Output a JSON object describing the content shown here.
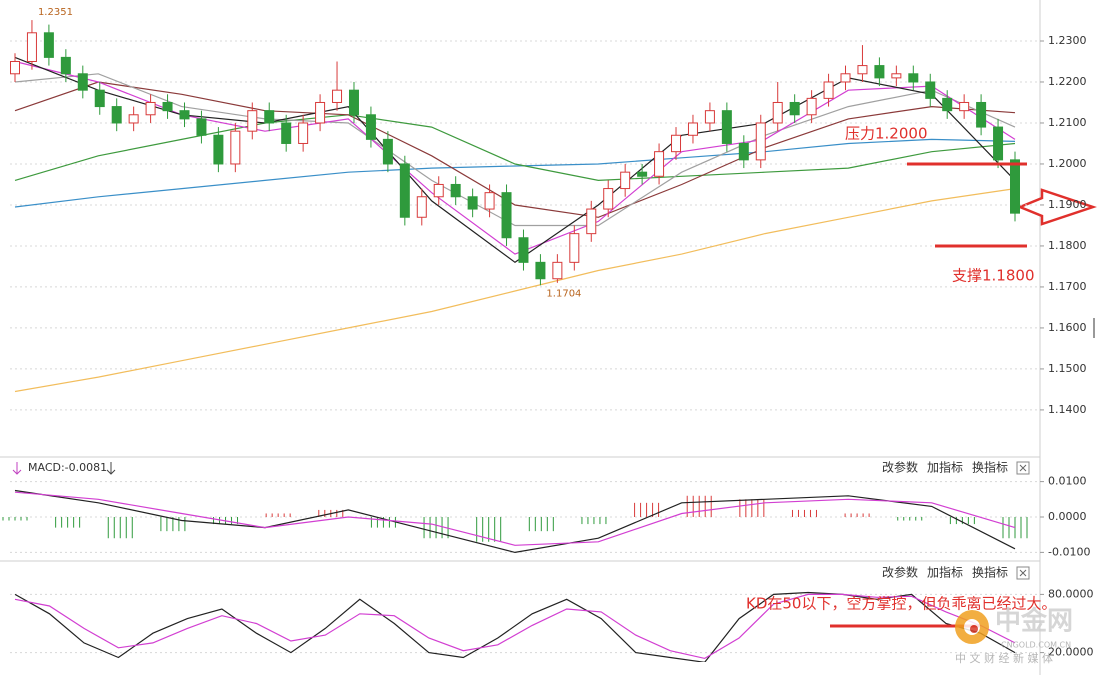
{
  "chart_data": [
    {
      "type": "candlestick",
      "open": [
        1.222,
        1.225,
        1.232,
        1.226,
        1.222,
        1.218,
        1.214,
        1.21,
        1.212,
        1.215,
        1.213,
        1.211,
        1.207,
        1.2,
        1.208,
        1.213,
        1.21,
        1.205,
        1.21,
        1.215,
        1.218,
        1.212,
        1.206,
        1.2,
        1.187,
        1.192,
        1.195,
        1.192,
        1.189,
        1.193,
        1.182,
        1.176,
        1.172,
        1.176,
        1.183,
        1.189,
        1.194,
        1.198,
        1.197,
        1.203,
        1.207,
        1.21,
        1.213,
        1.205,
        1.201,
        1.21,
        1.215,
        1.212,
        1.216,
        1.22,
        1.222,
        1.224,
        1.221,
        1.222,
        1.22,
        1.216,
        1.213,
        1.215,
        1.209,
        1.201
      ],
      "high": [
        1.227,
        1.2351,
        1.234,
        1.228,
        1.224,
        1.22,
        1.216,
        1.214,
        1.217,
        1.217,
        1.215,
        1.213,
        1.209,
        1.21,
        1.215,
        1.215,
        1.212,
        1.212,
        1.217,
        1.225,
        1.22,
        1.214,
        1.208,
        1.202,
        1.194,
        1.197,
        1.197,
        1.194,
        1.195,
        1.195,
        1.184,
        1.178,
        1.178,
        1.185,
        1.191,
        1.196,
        1.2,
        1.2,
        1.205,
        1.209,
        1.212,
        1.215,
        1.215,
        1.207,
        1.212,
        1.22,
        1.217,
        1.218,
        1.222,
        1.224,
        1.229,
        1.226,
        1.224,
        1.224,
        1.222,
        1.218,
        1.217,
        1.217,
        1.211,
        1.203
      ],
      "low": [
        1.22,
        1.223,
        1.224,
        1.22,
        1.216,
        1.212,
        1.208,
        1.208,
        1.21,
        1.211,
        1.209,
        1.205,
        1.198,
        1.198,
        1.206,
        1.208,
        1.203,
        1.203,
        1.208,
        1.213,
        1.21,
        1.204,
        1.198,
        1.185,
        1.185,
        1.19,
        1.19,
        1.187,
        1.187,
        1.18,
        1.174,
        1.1704,
        1.171,
        1.174,
        1.181,
        1.187,
        1.192,
        1.195,
        1.195,
        1.201,
        1.205,
        1.208,
        1.203,
        1.199,
        1.199,
        1.208,
        1.21,
        1.21,
        1.214,
        1.218,
        1.22,
        1.219,
        1.219,
        1.218,
        1.214,
        1.211,
        1.211,
        1.207,
        1.199,
        1.186
      ],
      "close": [
        1.225,
        1.232,
        1.226,
        1.222,
        1.218,
        1.214,
        1.21,
        1.212,
        1.215,
        1.213,
        1.211,
        1.207,
        1.2,
        1.208,
        1.213,
        1.21,
        1.205,
        1.21,
        1.215,
        1.218,
        1.212,
        1.206,
        1.2,
        1.187,
        1.192,
        1.195,
        1.192,
        1.189,
        1.193,
        1.182,
        1.176,
        1.172,
        1.176,
        1.183,
        1.189,
        1.194,
        1.198,
        1.197,
        1.203,
        1.207,
        1.21,
        1.213,
        1.205,
        1.201,
        1.21,
        1.215,
        1.212,
        1.216,
        1.22,
        1.222,
        1.224,
        1.221,
        1.222,
        1.22,
        1.216,
        1.213,
        1.215,
        1.209,
        1.201,
        1.188
      ],
      "up_color": "#d83a3a",
      "down_color": "#2f9a3c",
      "series": [
        {
          "color": "#f2bd5c",
          "values": [
            1.1445,
            1.148,
            1.152,
            1.156,
            1.16,
            1.164,
            1.169,
            1.174,
            1.178,
            1.183,
            1.187,
            1.191,
            1.194
          ]
        },
        {
          "color": "#3a8fc8",
          "values": [
            1.1895,
            1.192,
            1.194,
            1.196,
            1.198,
            1.199,
            1.1995,
            1.2,
            1.2015,
            1.203,
            1.205,
            1.206,
            1.2055
          ]
        },
        {
          "color": "#3e9a3e",
          "values": [
            1.196,
            1.202,
            1.206,
            1.21,
            1.212,
            1.209,
            1.2,
            1.196,
            1.197,
            1.198,
            1.199,
            1.203,
            1.205
          ]
        },
        {
          "color": "#8b3a3a",
          "values": [
            1.213,
            1.22,
            1.217,
            1.213,
            1.212,
            1.202,
            1.19,
            1.187,
            1.195,
            1.204,
            1.211,
            1.214,
            1.2125
          ]
        },
        {
          "color": "#a0a0a0",
          "values": [
            1.22,
            1.222,
            1.214,
            1.211,
            1.21,
            1.196,
            1.185,
            1.185,
            1.198,
            1.207,
            1.214,
            1.218,
            1.209
          ]
        },
        {
          "color": "#d23fd2",
          "values": [
            1.225,
            1.22,
            1.212,
            1.208,
            1.211,
            1.193,
            1.178,
            1.186,
            1.203,
            1.206,
            1.218,
            1.219,
            1.206
          ]
        },
        {
          "color": "#222222",
          "values": [
            1.226,
            1.218,
            1.212,
            1.21,
            1.214,
            1.191,
            1.176,
            1.19,
            1.207,
            1.21,
            1.221,
            1.217,
            1.196
          ]
        }
      ],
      "levels": [
        {
          "label": "压力1.2000",
          "value": 1.2,
          "color": "#e0302c"
        },
        {
          "label": "支撑1.1800",
          "value": 1.18,
          "color": "#e0302c"
        }
      ],
      "ylim": [
        1.129,
        1.24
      ],
      "yticks": [
        {
          "value": 1.23,
          "label": "1.2300"
        },
        {
          "value": 1.22,
          "label": "1.2200"
        },
        {
          "value": 1.21,
          "label": "1.2100"
        },
        {
          "value": 1.2,
          "label": "1.2000"
        },
        {
          "value": 1.19,
          "label": "1.1900"
        },
        {
          "value": 1.18,
          "label": "1.1800"
        },
        {
          "value": 1.17,
          "label": "1.1700"
        },
        {
          "value": 1.16,
          "label": "1.1600"
        },
        {
          "value": 1.15,
          "label": "1.1500"
        },
        {
          "value": 1.14,
          "label": "1.1400"
        }
      ],
      "grid": true
    },
    {
      "type": "macd",
      "title": "MACD:-0.0081",
      "histogram": {
        "values": [
          -0.001,
          -0.003,
          -0.006,
          -0.004,
          -0.002,
          0.001,
          0.002,
          -0.003,
          -0.006,
          -0.007,
          -0.004,
          -0.002,
          0.004,
          0.006,
          0.005,
          0.002,
          0.001,
          -0.001,
          -0.002,
          -0.006
        ],
        "up_color": "#d83a3a",
        "down_color": "#2f9a3c"
      },
      "series": [
        {
          "color": "#222222",
          "values": [
            0.0075,
            0.004,
            -0.001,
            -0.003,
            0.002,
            -0.004,
            -0.01,
            -0.006,
            0.004,
            0.005,
            0.006,
            0.003,
            -0.009
          ]
        },
        {
          "color": "#d23fd2",
          "values": [
            0.007,
            0.005,
            0.001,
            -0.003,
            0.0,
            -0.002,
            -0.008,
            -0.007,
            0.001,
            0.004,
            0.005,
            0.004,
            -0.003
          ]
        }
      ],
      "ylim": [
        -0.013,
        0.013
      ],
      "yticks": [
        {
          "value": 0.01,
          "label": "0.0100"
        },
        {
          "value": 0,
          "label": "0.0000"
        },
        {
          "value": -0.01,
          "label": "-0.0100"
        }
      ],
      "grid": true
    },
    {
      "type": "line",
      "annotation": "KD在50以下，空方掌控，但负乖离已经过大。",
      "series": [
        {
          "color": "#222222",
          "values": [
            80,
            60,
            30,
            15,
            40,
            55,
            65,
            40,
            20,
            45,
            75,
            50,
            20,
            15,
            35,
            60,
            75,
            55,
            20,
            15,
            10,
            55,
            80,
            82,
            80,
            75,
            80,
            50,
            40,
            20
          ]
        },
        {
          "color": "#d23fd2",
          "values": [
            75,
            68,
            45,
            25,
            30,
            45,
            58,
            50,
            32,
            38,
            60,
            58,
            35,
            22,
            28,
            48,
            65,
            62,
            38,
            22,
            14,
            35,
            70,
            80,
            80,
            77,
            78,
            62,
            48,
            30
          ]
        }
      ],
      "ylim": [
        0,
        100
      ],
      "yticks": [
        {
          "value": 80,
          "label": "80.0000"
        },
        {
          "value": 20,
          "label": "20.0000"
        }
      ],
      "grid": true
    }
  ],
  "toolbar": [
    "改参数",
    "加指标",
    "换指标"
  ],
  "watermark": {
    "name": "中金网",
    "domain": "CNGOLD.COM.CN",
    "slogan": "中 文 财 经 新 媒 体"
  }
}
